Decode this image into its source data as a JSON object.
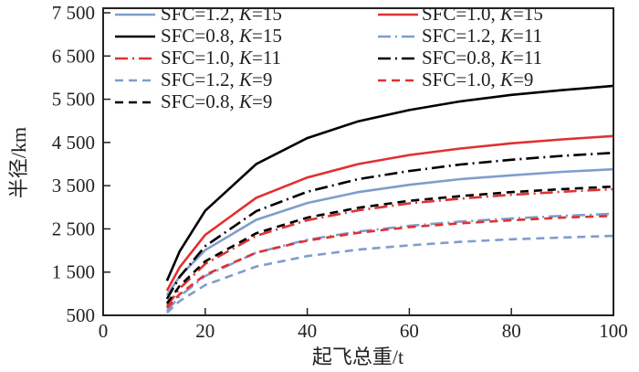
{
  "chart_data": {
    "type": "line",
    "title": "",
    "xlabel": "起飞总重/t",
    "ylabel": "半径/km",
    "xlim": [
      0,
      100
    ],
    "ylim": [
      500,
      7500
    ],
    "xticks": [
      0,
      20,
      40,
      60,
      80,
      100
    ],
    "xtick_labels": [
      "0",
      "20",
      "40",
      "60",
      "80",
      "100"
    ],
    "yticks": [
      500,
      1500,
      2500,
      3500,
      4500,
      5500,
      6500,
      7500
    ],
    "ytick_labels": [
      "500",
      "1 500",
      "2 500",
      "3 500",
      "4 500",
      "5 500",
      "6 500",
      "7 500"
    ],
    "grid": false,
    "legend_position": "top-left",
    "x": [
      12.5,
      15,
      20,
      30,
      40,
      50,
      60,
      70,
      80,
      90,
      100
    ],
    "series": [
      {
        "name": "SFC=1.2, K=15",
        "color": "#7f9dcc",
        "style": "solid",
        "values": [
          965,
          1400,
          2010,
          2710,
          3100,
          3350,
          3520,
          3650,
          3740,
          3820,
          3880
        ]
      },
      {
        "name": "SFC=1.0, K=15",
        "color": "#e03131",
        "style": "solid",
        "values": [
          1070,
          1610,
          2360,
          3220,
          3690,
          4000,
          4210,
          4360,
          4480,
          4570,
          4650
        ]
      },
      {
        "name": "SFC=0.8, K=15",
        "color": "#000000",
        "style": "solid",
        "values": [
          1300,
          1980,
          2920,
          4000,
          4600,
          4990,
          5250,
          5450,
          5600,
          5710,
          5810
        ]
      },
      {
        "name": "SFC=1.2, K=11",
        "color": "#7f9dcc",
        "style": "dashdot",
        "values": [
          600,
          940,
          1410,
          1950,
          2250,
          2440,
          2570,
          2670,
          2740,
          2800,
          2850
        ]
      },
      {
        "name": "SFC=1.0, K=11",
        "color": "#e03131",
        "style": "dashdot",
        "values": [
          710,
          1120,
          1690,
          2340,
          2700,
          2930,
          3090,
          3200,
          3290,
          3360,
          3420
        ]
      },
      {
        "name": "SFC=0.8, K=11",
        "color": "#000000",
        "style": "dashdot",
        "values": [
          880,
          1390,
          2100,
          2910,
          3360,
          3650,
          3840,
          3990,
          4100,
          4190,
          4260
        ]
      },
      {
        "name": "SFC=1.2, K=9",
        "color": "#7f9dcc",
        "style": "dashed",
        "values": [
          560,
          830,
          1200,
          1630,
          1870,
          2020,
          2120,
          2200,
          2260,
          2300,
          2340
        ]
      },
      {
        "name": "SFC=1.0, K=9",
        "color": "#e03131",
        "style": "dashed",
        "values": [
          670,
          990,
          1440,
          1950,
          2230,
          2410,
          2540,
          2630,
          2700,
          2760,
          2800
        ]
      },
      {
        "name": "SFC=0.8, K=9",
        "color": "#000000",
        "style": "dashed",
        "values": [
          775,
          1180,
          1750,
          2400,
          2760,
          2990,
          3150,
          3260,
          3350,
          3420,
          3480
        ]
      }
    ]
  }
}
